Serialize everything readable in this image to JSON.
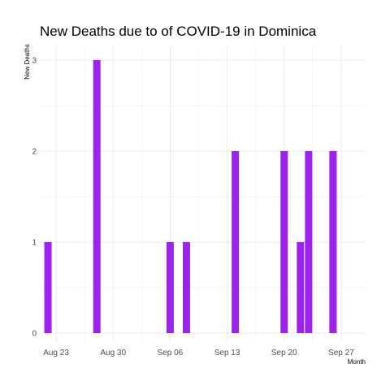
{
  "chart_data": {
    "type": "bar",
    "title": "New Deaths due to of COVID-19 in Dominica",
    "xlabel": "Month",
    "ylabel": "New Deaths",
    "ylim": [
      0,
      3
    ],
    "yticks": [
      "0",
      "1",
      "2",
      "3"
    ],
    "xtick_labels": [
      "Aug 23",
      "Aug 30",
      "Sep 06",
      "Sep 13",
      "Sep 20",
      "Sep 27"
    ],
    "xtick_dates": [
      "2020-08-23",
      "2020-08-30",
      "2020-09-06",
      "2020-09-13",
      "2020-09-20",
      "2020-09-27"
    ],
    "xlim": [
      "2020-08-21",
      "2020-09-30"
    ],
    "grid": true,
    "colors": {
      "bar": "#A020F0",
      "grid": "#ebebeb"
    },
    "series": [
      {
        "x": [
          "2020-08-22",
          "2020-08-28",
          "2020-09-06",
          "2020-09-08",
          "2020-09-14",
          "2020-09-20",
          "2020-09-22",
          "2020-09-23",
          "2020-09-26"
        ],
        "values": [
          1,
          3,
          1,
          1,
          2,
          2,
          1,
          2,
          2
        ]
      }
    ]
  }
}
